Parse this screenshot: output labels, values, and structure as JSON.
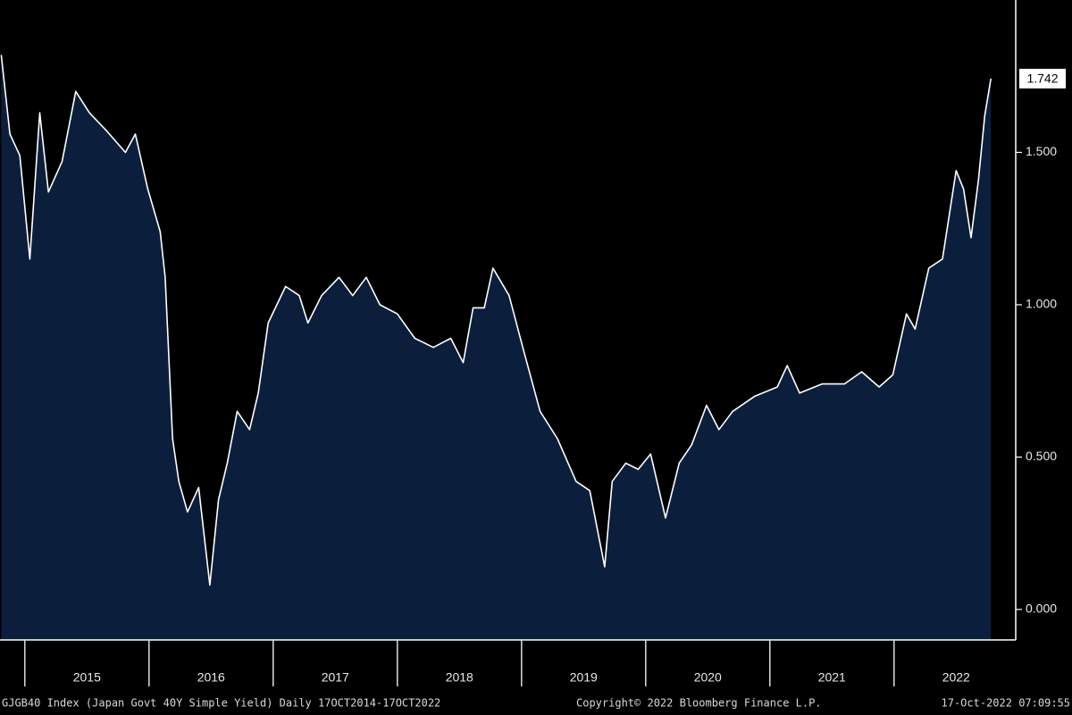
{
  "chart_data": {
    "type": "area",
    "color": "#ffffff",
    "fill": "#0b1f3d",
    "source": "GJGB40 Index (Japan Govt 40Y Simple Yield)  Daily 17OCT2014-17OCT2022",
    "copyright": "Copyright© 2022 Bloomberg Finance L.P.",
    "timestamp": "17-Oct-2022 07:09:55",
    "x": [
      2014.81,
      2014.88,
      2014.96,
      2015.04,
      2015.12,
      2015.19,
      2015.3,
      2015.41,
      2015.52,
      2015.66,
      2015.81,
      2015.89,
      2015.99,
      2016.09,
      2016.13,
      2016.19,
      2016.24,
      2016.31,
      2016.4,
      2016.49,
      2016.56,
      2016.63,
      2016.71,
      2016.81,
      2016.88,
      2016.96,
      2017.1,
      2017.21,
      2017.28,
      2017.39,
      2017.53,
      2017.64,
      2017.75,
      2017.86,
      2018.0,
      2018.14,
      2018.29,
      2018.43,
      2018.53,
      2018.61,
      2018.7,
      2018.77,
      2018.9,
      2019.01,
      2019.15,
      2019.29,
      2019.44,
      2019.55,
      2019.67,
      2019.73,
      2019.84,
      2019.94,
      2020.04,
      2020.16,
      2020.27,
      2020.37,
      2020.49,
      2020.59,
      2020.7,
      2020.88,
      2021.06,
      2021.14,
      2021.24,
      2021.42,
      2021.6,
      2021.74,
      2021.88,
      2021.99,
      2022.1,
      2022.17,
      2022.28,
      2022.39,
      2022.5,
      2022.56,
      2022.62,
      2022.68,
      2022.73,
      2022.78
    ],
    "values": [
      1.82,
      1.56,
      1.49,
      1.15,
      1.63,
      1.37,
      1.47,
      1.7,
      1.63,
      1.57,
      1.5,
      1.56,
      1.38,
      1.24,
      1.09,
      0.56,
      0.42,
      0.32,
      0.4,
      0.08,
      0.36,
      0.48,
      0.65,
      0.59,
      0.71,
      0.94,
      1.06,
      1.03,
      0.94,
      1.03,
      1.09,
      1.03,
      1.09,
      1.0,
      0.97,
      0.89,
      0.86,
      0.89,
      0.81,
      0.99,
      0.99,
      1.12,
      1.03,
      0.86,
      0.65,
      0.56,
      0.42,
      0.39,
      0.14,
      0.42,
      0.48,
      0.46,
      0.51,
      0.3,
      0.48,
      0.54,
      0.67,
      0.59,
      0.65,
      0.7,
      0.73,
      0.8,
      0.71,
      0.74,
      0.74,
      0.78,
      0.73,
      0.77,
      0.97,
      0.92,
      1.12,
      1.15,
      1.44,
      1.38,
      1.22,
      1.41,
      1.62,
      1.742
    ],
    "xlim": [
      2014.8,
      2022.98
    ],
    "xticks": [
      {
        "value": 2015,
        "label": "2015"
      },
      {
        "value": 2016,
        "label": "2016"
      },
      {
        "value": 2017,
        "label": "2017"
      },
      {
        "value": 2018,
        "label": "2018"
      },
      {
        "value": 2019,
        "label": "2019"
      },
      {
        "value": 2020,
        "label": "2020"
      },
      {
        "value": 2021,
        "label": "2021"
      },
      {
        "value": 2022,
        "label": "2022"
      }
    ],
    "ylim": [
      -0.1,
      2.0
    ],
    "yticks": [
      {
        "value": 0,
        "label": "0.000"
      },
      {
        "value": 0.5,
        "label": "0.500"
      },
      {
        "value": 1,
        "label": "1.000"
      },
      {
        "value": 1.5,
        "label": "1.500"
      }
    ],
    "grid": false
  }
}
